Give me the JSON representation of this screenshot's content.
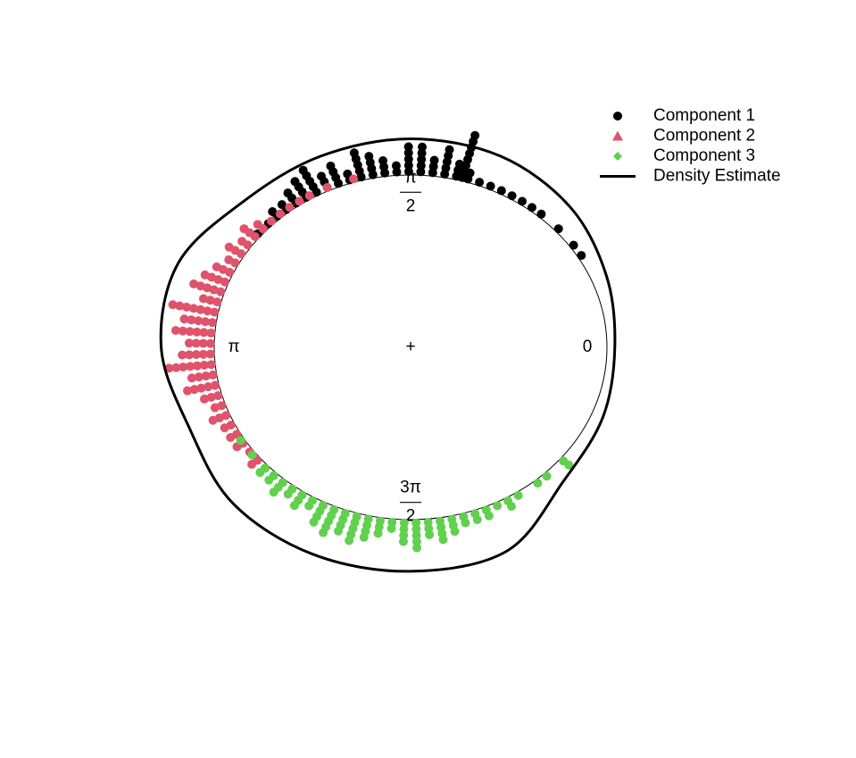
{
  "chart_data": {
    "type": "circular",
    "xticks": [
      0,
      {
        "value": 1.5708,
        "label": "π/2"
      },
      {
        "value": 3.1416,
        "label": "π"
      },
      {
        "value": 4.7124,
        "label": "3π/2"
      }
    ],
    "series": [
      {
        "name": "Component 1",
        "color": "#000000",
        "marker": "circle",
        "x": [
          0.55,
          0.62,
          0.74,
          0.86,
          0.92,
          0.98,
          1.04,
          1.1,
          1.16,
          1.22,
          1.28,
          1.31,
          1.34,
          1.4,
          1.46,
          1.52,
          1.58,
          1.64,
          1.7,
          1.76,
          1.82,
          1.88,
          1.94,
          2.0,
          2.06,
          2.12,
          2.18,
          2.24,
          2.3,
          2.36,
          2.44
        ],
        "values": [
          1,
          1,
          1,
          1,
          1,
          1,
          1,
          1,
          1,
          1,
          2,
          8,
          3,
          5,
          3,
          5,
          5,
          2,
          3,
          4,
          5,
          2,
          4,
          3,
          5,
          4,
          3,
          2,
          2,
          1,
          1
        ]
      },
      {
        "name": "Component 2",
        "color": "#df536b",
        "marker": "triangle",
        "x": [
          1.86,
          2.0,
          2.1,
          2.16,
          2.22,
          2.28,
          2.34,
          2.4,
          2.46,
          2.52,
          2.58,
          2.64,
          2.7,
          2.76,
          2.82,
          2.88,
          2.94,
          3.0,
          3.06,
          3.12,
          3.18,
          3.24,
          3.3,
          3.36,
          3.42,
          3.48,
          3.54,
          3.6,
          3.66,
          3.72,
          3.78,
          3.84,
          3.9
        ],
        "values": [
          1,
          1,
          1,
          1,
          1,
          1,
          1,
          2,
          3,
          2,
          3,
          2,
          3,
          4,
          5,
          3,
          7,
          5,
          6,
          4,
          5,
          7,
          4,
          5,
          3,
          2,
          3,
          2,
          2,
          2,
          1,
          2,
          1
        ]
      },
      {
        "name": "Component 3",
        "color": "#61d04f",
        "marker": "diamond",
        "x": [
          3.7,
          3.8,
          3.9,
          3.96,
          4.02,
          4.08,
          4.14,
          4.2,
          4.26,
          4.32,
          4.38,
          4.44,
          4.5,
          4.56,
          4.62,
          4.68,
          4.74,
          4.8,
          4.86,
          4.92,
          4.98,
          5.04,
          5.1,
          5.16,
          5.22,
          5.28,
          5.4,
          5.46,
          5.58
        ],
        "values": [
          1,
          1,
          2,
          2,
          3,
          2,
          3,
          2,
          4,
          5,
          4,
          5,
          4,
          3,
          2,
          4,
          5,
          3,
          4,
          3,
          2,
          2,
          2,
          1,
          2,
          1,
          1,
          1,
          2
        ]
      }
    ],
    "density": {
      "name": "Density Estimate",
      "color": "#000000",
      "x": [
        0,
        0.3927,
        0.7854,
        1.1781,
        1.5708,
        1.9635,
        2.3562,
        2.7489,
        3.1416,
        3.5343,
        3.927,
        4.3197,
        4.7124,
        5.1051,
        5.4978,
        5.8905
      ],
      "values": [
        0.04,
        0.08,
        0.15,
        0.2,
        0.21,
        0.2,
        0.2,
        0.28,
        0.27,
        0.22,
        0.28,
        0.3,
        0.3,
        0.28,
        0.1,
        0.06
      ]
    }
  }
}
